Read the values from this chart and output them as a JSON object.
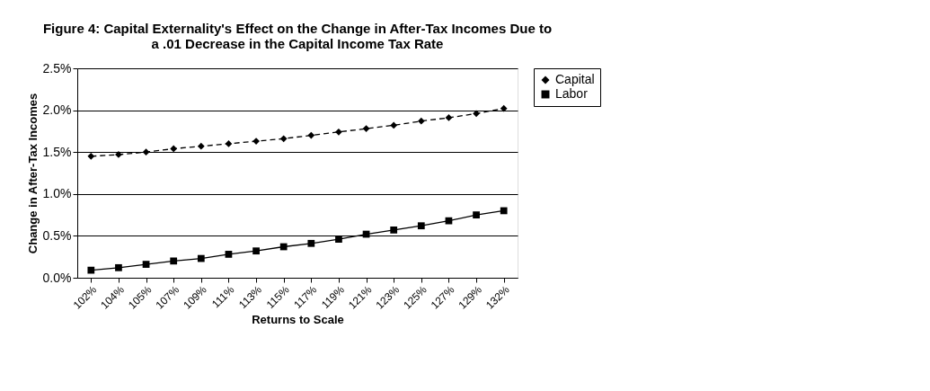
{
  "chart_data": {
    "type": "line",
    "title": [
      "Figure 4: Capital Externality's Effect on the Change in After-Tax Incomes Due to",
      "a .01 Decrease in the Capital Income Tax Rate"
    ],
    "xlabel": "Returns to Scale",
    "ylabel": "Change in After-Tax Incomes",
    "categories": [
      "102%",
      "104%",
      "105%",
      "107%",
      "109%",
      "111%",
      "113%",
      "115%",
      "117%",
      "119%",
      "121%",
      "123%",
      "125%",
      "127%",
      "129%",
      "132%"
    ],
    "series": [
      {
        "name": "Capital",
        "color": "#000000",
        "marker": "diamond",
        "line_style": "dashed",
        "values": [
          1.45,
          1.47,
          1.5,
          1.54,
          1.57,
          1.6,
          1.63,
          1.66,
          1.7,
          1.74,
          1.78,
          1.82,
          1.87,
          1.91,
          1.96,
          2.02
        ]
      },
      {
        "name": "Labor",
        "color": "#000000",
        "marker": "square",
        "line_style": "solid",
        "values": [
          0.09,
          0.12,
          0.16,
          0.2,
          0.23,
          0.28,
          0.32,
          0.37,
          0.41,
          0.46,
          0.52,
          0.57,
          0.62,
          0.68,
          0.75,
          0.8
        ]
      }
    ],
    "ylim": [
      0,
      2.5
    ],
    "yticks": [
      {
        "value": 0,
        "label": "0.0%"
      },
      {
        "value": 0.5,
        "label": "0.5%"
      },
      {
        "value": 1.0,
        "label": "1.0%"
      },
      {
        "value": 1.5,
        "label": "1.5%"
      },
      {
        "value": 2.0,
        "label": "2.0%"
      },
      {
        "value": 2.5,
        "label": "2.5%"
      }
    ],
    "grid": "y",
    "legend": "right"
  }
}
